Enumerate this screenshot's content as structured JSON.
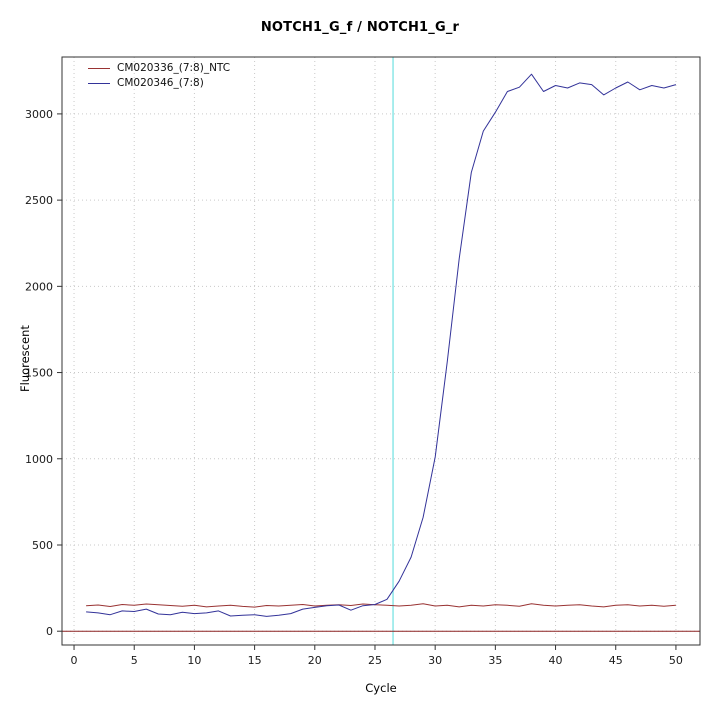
{
  "chart_data": {
    "type": "line",
    "title": "NOTCH1_G_f / NOTCH1_G_r",
    "xlabel": "Cycle",
    "ylabel": "Fluorescent",
    "xlim": [
      -1,
      52
    ],
    "ylim": [
      -80,
      3330
    ],
    "xticks": [
      0,
      5,
      10,
      15,
      20,
      25,
      30,
      35,
      40,
      45,
      50
    ],
    "yticks": [
      0,
      500,
      1000,
      1500,
      2000,
      2500,
      3000
    ],
    "grid": true,
    "legend_position": "top-left-inside",
    "cycle_start": 1,
    "threshold_cycle_line_x": 26.5,
    "baseline_line_y": 0,
    "colors": {
      "grid": "#c9c9c9",
      "axis": "#333333",
      "threshold_line": "#6fe0e0",
      "baseline_line": "#8b2222"
    },
    "series": [
      {
        "name": "CM020336_(7:8)_NTC",
        "color": "#993333",
        "values": [
          148,
          152,
          143,
          155,
          150,
          158,
          153,
          149,
          145,
          151,
          141,
          146,
          150,
          144,
          140,
          149,
          146,
          151,
          155,
          146,
          150,
          154,
          149,
          158,
          154,
          150,
          146,
          151,
          159,
          146,
          150,
          141,
          150,
          146,
          154,
          150,
          145,
          159,
          150,
          146,
          150,
          154,
          146,
          141,
          150,
          154,
          146,
          150,
          145,
          150
        ]
      },
      {
        "name": "CM020346_(7:8)",
        "color": "#333399",
        "values": [
          112,
          106,
          96,
          118,
          114,
          128,
          100,
          96,
          110,
          102,
          106,
          118,
          88,
          92,
          96,
          86,
          92,
          102,
          128,
          138,
          148,
          152,
          122,
          148,
          155,
          185,
          290,
          430,
          660,
          1010,
          1560,
          2160,
          2660,
          2900,
          3010,
          3130,
          3155,
          3230,
          3130,
          3165,
          3150,
          3180,
          3170,
          3110,
          3150,
          3185,
          3140,
          3165,
          3150,
          3170
        ]
      }
    ]
  }
}
